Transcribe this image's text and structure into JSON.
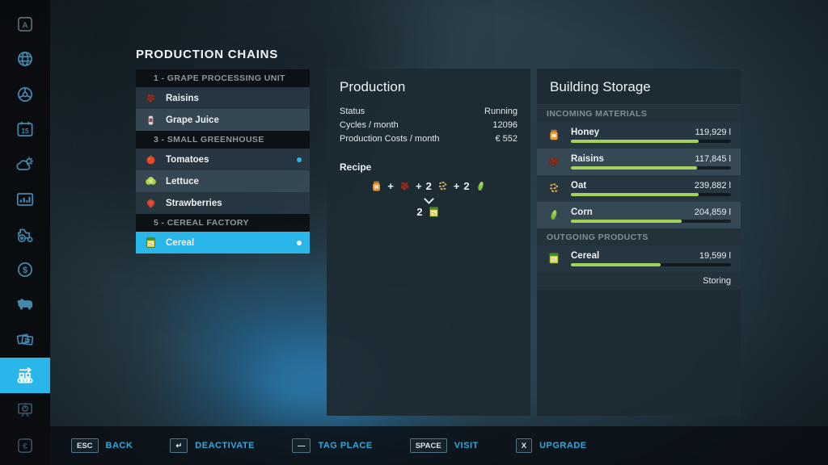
{
  "app": {
    "title": "PRODUCTION CHAINS"
  },
  "chains": {
    "rows": [
      {
        "type": "header",
        "label": "1 - GRAPE PROCESSING UNIT"
      },
      {
        "type": "item",
        "label": "Raisins"
      },
      {
        "type": "item",
        "label": "Grape Juice"
      },
      {
        "type": "header",
        "label": "3 - SMALL GREENHOUSE"
      },
      {
        "type": "item",
        "label": "Tomatoes"
      },
      {
        "type": "item",
        "label": "Lettuce"
      },
      {
        "type": "item",
        "label": "Strawberries"
      },
      {
        "type": "header",
        "label": "5 - CEREAL FACTORY"
      },
      {
        "type": "item",
        "label": "Cereal"
      }
    ]
  },
  "production": {
    "title": "Production",
    "stats": [
      {
        "label": "Status",
        "value": "Running"
      },
      {
        "label": "Cycles / month",
        "value": "12096"
      },
      {
        "label": "Production Costs / month",
        "value": "€ 552"
      }
    ],
    "recipe_label": "Recipe",
    "recipe": {
      "plus": "+",
      "inputs": [
        {
          "qty": "",
          "name": "Honey"
        },
        {
          "qty": "",
          "name": "Raisins"
        },
        {
          "qty": "2",
          "name": "Oat"
        },
        {
          "qty": "2",
          "name": "Corn"
        }
      ],
      "output_qty": "2",
      "output_name": "Cereal"
    }
  },
  "storage": {
    "title": "Building Storage",
    "incoming_header": "INCOMING MATERIALS",
    "outgoing_header": "OUTGOING PRODUCTS",
    "incoming": [
      {
        "name": "Honey",
        "amount": "119,929 l",
        "percent": 80
      },
      {
        "name": "Raisins",
        "amount": "117,845 l",
        "percent": 79
      },
      {
        "name": "Oat",
        "amount": "239,882 l",
        "percent": 80
      },
      {
        "name": "Corn",
        "amount": "204,859 l",
        "percent": 69
      }
    ],
    "outgoing": [
      {
        "name": "Cereal",
        "amount": "19,599 l",
        "percent": 56,
        "status": "Storing"
      }
    ]
  },
  "hotbar": {
    "actions": [
      {
        "key": "ESC",
        "label": "BACK"
      },
      {
        "key": "↵",
        "label": "DEACTIVATE"
      },
      {
        "key": "—",
        "label": "TAG PLACE"
      },
      {
        "key": "SPACE",
        "label": "VISIT"
      },
      {
        "key": "X",
        "label": "UPGRADE"
      }
    ]
  },
  "colors": {
    "accent": "#29b7e9",
    "bar_fill": "#a6d05c"
  }
}
